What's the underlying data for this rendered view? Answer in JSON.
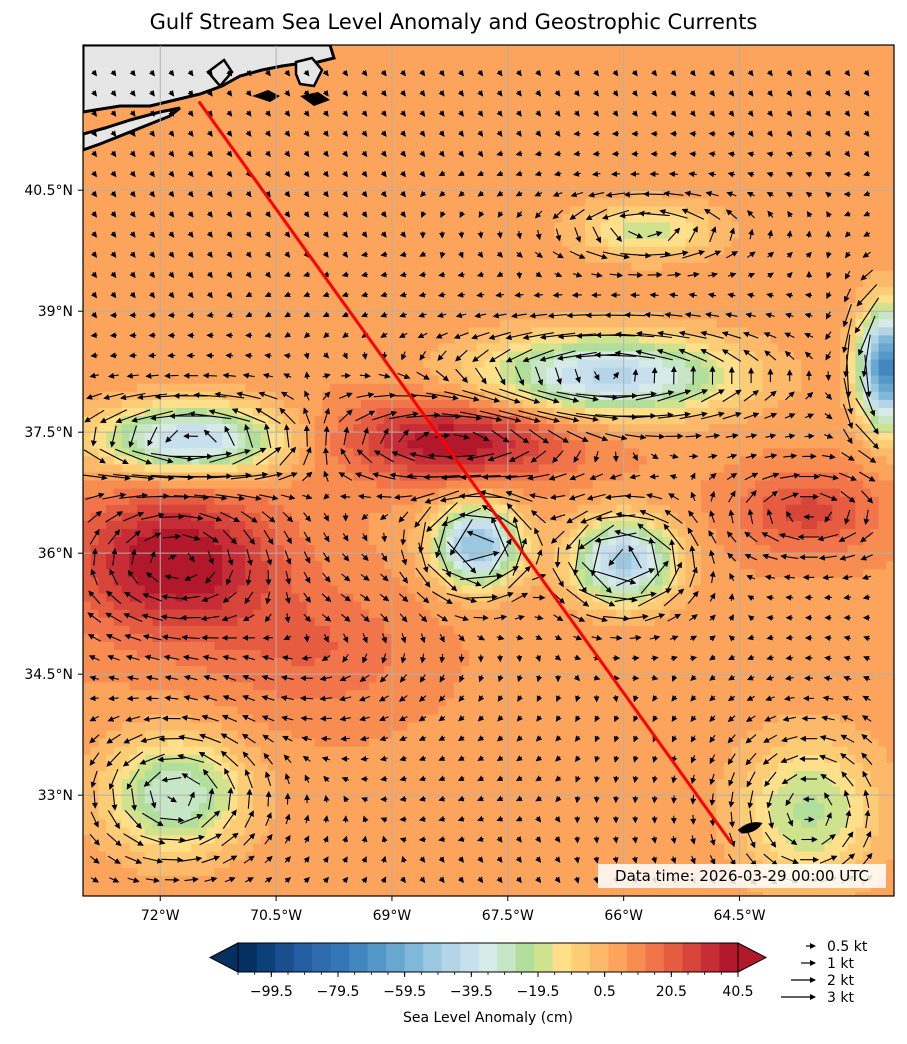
{
  "title": "Gulf Stream Sea Level Anomaly and Geostrophic Currents",
  "data_time": "Data time: 2026-03-29 00:00 UTC",
  "colorbar": {
    "label": "Sea Level Anomaly (cm)",
    "tick_labels": [
      "−99.5",
      "−79.5",
      "−59.5",
      "−39.5",
      "−19.5",
      "0.5",
      "20.5",
      "40.5"
    ],
    "tick_values": [
      -99.5,
      -79.5,
      -59.5,
      -39.5,
      -19.5,
      0.5,
      20.5,
      40.5
    ],
    "min": -109.5,
    "max": 40.5,
    "extend": "both",
    "colormap": "RdYlBu_r"
  },
  "vector_key": [
    "0.5 kt",
    "1 kt",
    "2 kt",
    "3 kt"
  ],
  "vector_key_values": [
    0.5,
    1,
    2,
    3
  ],
  "lon_labels": [
    "72°W",
    "70.5°W",
    "69°W",
    "67.5°W",
    "66°W",
    "64.5°W"
  ],
  "lat_labels": [
    "40.5°N",
    "39°N",
    "37.5°N",
    "36°N",
    "34.5°N",
    "33°N"
  ],
  "chart_data": {
    "type": "heatmap",
    "projection": "PlateCarree",
    "extent": {
      "lon": [
        -73.0,
        -62.5
      ],
      "lat": [
        31.75,
        42.3
      ]
    },
    "gridlines": true,
    "lon_ticks": [
      -72,
      -70.5,
      -69,
      -67.5,
      -66,
      -64.5
    ],
    "lat_ticks": [
      40.5,
      39,
      37.5,
      36,
      34.5,
      33
    ],
    "grid_step_deg": 1.5,
    "sla_background_cm": 6,
    "features": [
      {
        "name": "warm-ring-sw",
        "lon": -71.8,
        "lat": 35.9,
        "sla_cm": 42,
        "rx_deg": 1.3,
        "ry_deg": 0.9
      },
      {
        "name": "gulf-stream-warm-core",
        "lon": -68.2,
        "lat": 37.4,
        "sla_cm": 40,
        "rx_deg": 1.5,
        "ry_deg": 0.5
      },
      {
        "name": "warm-patch-east",
        "lon": -63.6,
        "lat": 36.5,
        "sla_cm": 26,
        "rx_deg": 0.9,
        "ry_deg": 0.5
      },
      {
        "name": "warm-patch-south",
        "lon": -70.0,
        "lat": 34.8,
        "sla_cm": 18,
        "rx_deg": 1.3,
        "ry_deg": 0.8
      },
      {
        "name": "cold-eddy-center",
        "lon": -67.9,
        "lat": 36.1,
        "sla_cm": -55,
        "rx_deg": 0.55,
        "ry_deg": 0.5
      },
      {
        "name": "cold-eddy-east",
        "lon": -66.0,
        "lat": 35.9,
        "sla_cm": -50,
        "rx_deg": 0.65,
        "ry_deg": 0.5
      },
      {
        "name": "cold-band-north",
        "lon": -66.2,
        "lat": 38.2,
        "sla_cm": -45,
        "rx_deg": 1.6,
        "ry_deg": 0.5
      },
      {
        "name": "cold-patch-west",
        "lon": -71.6,
        "lat": 37.4,
        "sla_cm": -45,
        "rx_deg": 1.2,
        "ry_deg": 0.45
      },
      {
        "name": "cold-edge-ne",
        "lon": -62.6,
        "lat": 38.3,
        "sla_cm": -75,
        "rx_deg": 0.35,
        "ry_deg": 0.7
      },
      {
        "name": "cool-sw",
        "lon": -71.8,
        "lat": 33.0,
        "sla_cm": -32,
        "rx_deg": 0.9,
        "ry_deg": 0.7
      },
      {
        "name": "cool-se",
        "lon": -63.6,
        "lat": 32.8,
        "sla_cm": -22,
        "rx_deg": 0.9,
        "ry_deg": 0.9
      },
      {
        "name": "cool-north",
        "lon": -65.7,
        "lat": 40.0,
        "sla_cm": -18,
        "rx_deg": 0.9,
        "ry_deg": 0.35
      }
    ],
    "transect": {
      "start": {
        "lon": -71.5,
        "lat": 41.6
      },
      "end": {
        "lon": -64.6,
        "lat": 32.4
      },
      "color": "#ff0000"
    },
    "vectors": {
      "spacing_deg": 0.25,
      "units": "kt"
    }
  }
}
